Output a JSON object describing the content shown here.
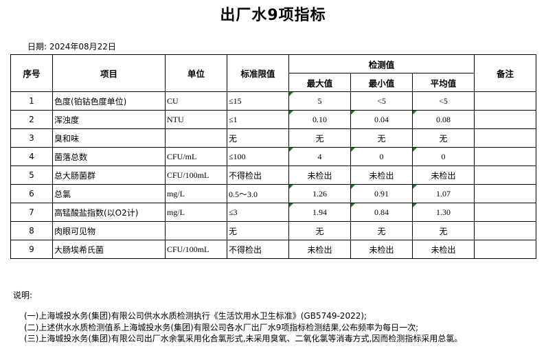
{
  "title": "出厂水9项指标",
  "date": "日期: 2024年08月22日",
  "headers": {
    "no": "序号",
    "item": "项目",
    "unit": "单位",
    "limit": "标准限值",
    "detect": "检测值",
    "max": "最大值",
    "min": "最小值",
    "avg": "平均值",
    "remark": "备注"
  },
  "rows": [
    {
      "no": "1",
      "item": "色度(铂钴色度单位)",
      "unit": "CU",
      "limit": "≤15",
      "max": "5",
      "min": "<5",
      "avg": "<5",
      "flags": [
        true,
        false,
        false
      ]
    },
    {
      "no": "2",
      "item": "浑浊度",
      "unit": "NTU",
      "limit": "≤1",
      "max": "0.10",
      "min": "0.04",
      "avg": "0.08",
      "flags": [
        true,
        true,
        true
      ]
    },
    {
      "no": "3",
      "item": "臭和味",
      "unit": "",
      "limit": "无",
      "max": "无",
      "min": "无",
      "avg": "无",
      "flags": [
        false,
        false,
        false
      ]
    },
    {
      "no": "4",
      "item": "菌落总数",
      "unit": "CFU/mL",
      "limit": "≤100",
      "max": "4",
      "min": "0",
      "avg": "0",
      "flags": [
        true,
        true,
        true
      ]
    },
    {
      "no": "5",
      "item": "总大肠菌群",
      "unit": "CFU/100mL",
      "limit": "不得检出",
      "max": "未检出",
      "min": "未检出",
      "avg": "未检出",
      "flags": [
        false,
        false,
        false
      ]
    },
    {
      "no": "6",
      "item": "总氯",
      "unit": "mg/L",
      "limit": "0.5～3.0",
      "max": "1.26",
      "min": "0.91",
      "avg": "1.07",
      "flags": [
        true,
        true,
        true
      ]
    },
    {
      "no": "7",
      "item": "高锰酸盐指数(以O2计)",
      "unit": "mg/L",
      "limit": "≤3",
      "max": "1.94",
      "min": "0.84",
      "avg": "1.30",
      "flags": [
        true,
        true,
        true
      ]
    },
    {
      "no": "8",
      "item": "肉眼可见物",
      "unit": "",
      "limit": "无",
      "max": "无",
      "min": "无",
      "avg": "无",
      "flags": [
        false,
        false,
        false
      ]
    },
    {
      "no": "9",
      "item": "大肠埃希氏菌",
      "unit": "CFU/100mL",
      "limit": "不得检出",
      "max": "未检出",
      "min": "未检出",
      "avg": "未检出",
      "flags": [
        false,
        false,
        false
      ]
    }
  ],
  "notes": {
    "label": "说明:",
    "items": [
      "(一)上海城投水务(集团)有限公司供水水质检测执行《生活饮用水卫生标准》(GB5749-2022);",
      "(二)上述供水水质检测值系上海城投水务(集团)有限公司各水厂出厂水9项指标检测结果,公布频率为每日一次;",
      "(三)上海城投水务(集团)有限公司出厂水余氯采用化合氯形式,未采用臭氧、二氧化氯等消毒方式,因而检测指标采用总氯。"
    ]
  },
  "colors": {
    "error_flag": "#1a7a1a"
  }
}
